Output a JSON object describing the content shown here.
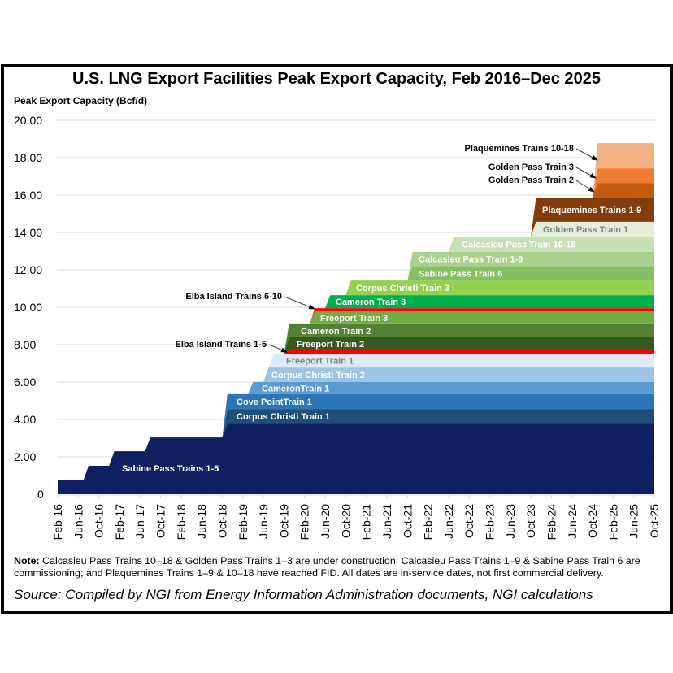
{
  "chart_data": {
    "type": "area",
    "stacked": true,
    "step": true,
    "title": "U.S. LNG Export Facilities Peak Export Capacity, Feb 2016–Dec 2025",
    "ylabel": "Peak Export Capacity (Bcf/d)",
    "xlabel": "",
    "ylim": [
      0,
      20
    ],
    "xlim": [
      "2016-02",
      "2025-10"
    ],
    "grid": true,
    "yticks": [
      "0",
      "2.00",
      "4.00",
      "6.00",
      "8.00",
      "10.00",
      "12.00",
      "14.00",
      "16.00",
      "18.00",
      "20.00"
    ],
    "xticks": [
      "Feb-16",
      "Jun-16",
      "Oct-16",
      "Feb-17",
      "Jun-17",
      "Oct-17",
      "Feb-18",
      "Jun-18",
      "Oct-18",
      "Feb-19",
      "Jun-19",
      "Oct-19",
      "Feb-20",
      "Jun-20",
      "Oct-20",
      "Feb-21",
      "Jun-21",
      "Oct-21",
      "Feb-22",
      "Jun-22",
      "Oct-22",
      "Feb-23",
      "Jun-23",
      "Oct-23",
      "Feb-24",
      "Jun-24",
      "Oct-24",
      "Feb-25",
      "Jun-25",
      "Oct-25"
    ],
    "series": [
      {
        "name": "Sabine Pass Trains 1-5",
        "color": "#0e2060",
        "label_color": "#ffffff",
        "steps": [
          [
            "2016-02",
            0.74
          ],
          [
            "2016-07",
            0.78
          ],
          [
            "2016-12",
            0.78
          ],
          [
            "2017-07",
            0.74
          ],
          [
            "2018-10",
            0.74
          ]
        ]
      },
      {
        "name": "Corpus Christi Train 1",
        "color": "#1f4e79",
        "label_color": "#ffffff",
        "steps": [
          [
            "2018-10",
            0.78
          ]
        ]
      },
      {
        "name": "Cove PointTrain 1",
        "color": "#2e75b6",
        "label_color": "#ffffff",
        "steps": [
          [
            "2018-10",
            0.79
          ]
        ]
      },
      {
        "name": "CameronTrain 1",
        "color": "#5b9bd5",
        "label_color": "#ffffff",
        "steps": [
          [
            "2019-03",
            0.65
          ]
        ]
      },
      {
        "name": "Corpus Christi Train 2",
        "color": "#9dc3e6",
        "label_color": "#ffffff",
        "steps": [
          [
            "2019-06",
            0.78
          ]
        ]
      },
      {
        "name": "Freeport Train 1",
        "color": "#deebf7",
        "label_color": "#808080",
        "steps": [
          [
            "2019-07",
            0.74
          ]
        ]
      },
      {
        "name": "Elba Island Trains 1-5",
        "color": "#ff0000",
        "label_color": "#000000",
        "callout": true,
        "steps": [
          [
            "2019-10",
            0.18
          ]
        ]
      },
      {
        "name": "Freeport Train 2",
        "color": "#385723",
        "label_color": "#ffffff",
        "steps": [
          [
            "2019-10",
            0.69
          ]
        ]
      },
      {
        "name": "Cameron Train 2",
        "color": "#548235",
        "label_color": "#ffffff",
        "steps": [
          [
            "2019-10",
            0.7
          ]
        ]
      },
      {
        "name": "Freeport Train 3",
        "color": "#70ad47",
        "label_color": "#ffffff",
        "steps": [
          [
            "2020-03",
            0.69
          ]
        ]
      },
      {
        "name": "Elba Island Trains 6-10",
        "color": "#ff0000",
        "label_color": "#000000",
        "callout": true,
        "steps": [
          [
            "2020-03",
            0.17
          ]
        ]
      },
      {
        "name": "Cameron Train 3",
        "color": "#00b050",
        "label_color": "#ffffff",
        "steps": [
          [
            "2020-06",
            0.7
          ]
        ]
      },
      {
        "name": "Corpus Christi Train 3",
        "color": "#92d050",
        "label_color": "#ffffff",
        "steps": [
          [
            "2020-10",
            0.78
          ]
        ]
      },
      {
        "name": "Sabine Pass Train 6",
        "color": "#86bf63",
        "label_color": "#ffffff",
        "steps": [
          [
            "2021-10",
            0.77
          ]
        ]
      },
      {
        "name": "Calcasieu Pass Train 1-9",
        "color": "#a9d18e",
        "label_color": "#ffffff",
        "steps": [
          [
            "2021-10",
            0.76
          ]
        ]
      },
      {
        "name": "Calcasieu Pass Train 10-18",
        "color": "#c5e0b4",
        "label_color": "#ffffff",
        "steps": [
          [
            "2022-06",
            0.82
          ]
        ]
      },
      {
        "name": "Golden Pass Train 1",
        "color": "#e2f0d9",
        "label_color": "#808080",
        "steps": [
          [
            "2023-10",
            0.79
          ]
        ]
      },
      {
        "name": "Plaquemines Trains 1-9",
        "color": "#843c0c",
        "label_color": "#ffffff",
        "steps": [
          [
            "2023-10",
            1.3
          ]
        ]
      },
      {
        "name": "Golden Pass Train 2",
        "color": "#c55a11",
        "label_color": "#000000",
        "callout": true,
        "steps": [
          [
            "2024-10",
            0.78
          ]
        ]
      },
      {
        "name": "Golden Pass Train 3",
        "color": "#ed7d31",
        "label_color": "#000000",
        "callout": true,
        "steps": [
          [
            "2024-10",
            0.78
          ]
        ]
      },
      {
        "name": "Plaquemines Trains 10-18",
        "color": "#f4b183",
        "label_color": "#000000",
        "callout": true,
        "steps": [
          [
            "2024-10",
            1.35
          ]
        ]
      }
    ]
  },
  "note": {
    "prefix": "Note:",
    "text": " Calcasieu Pass Trains 10–18 & Golden Pass Trains 1–3 are under construction; Calcasieu Pass Trains 1–9 & Sabine Pass Train 6 are commissioning; and Plaquemines Trains 1–9 & 10–18 have reached FID. All dates are in-service dates, not first commercial delivery."
  },
  "source": "Source: Compiled by NGI from Energy Information Administration documents, NGI calculations"
}
